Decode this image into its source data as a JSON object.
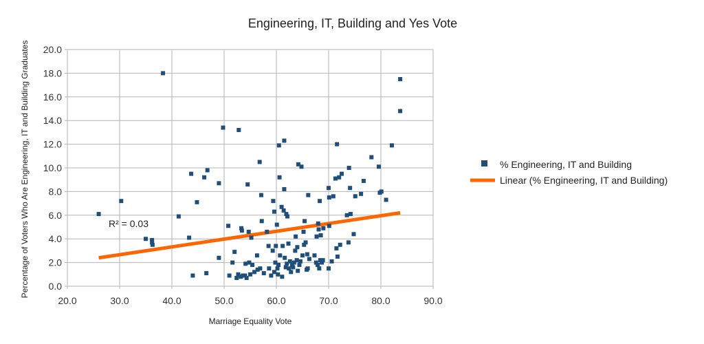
{
  "chart_data": {
    "type": "scatter",
    "title": "Engineering, IT, Building and Yes Vote",
    "xlabel": "Marriage Equality Vote",
    "ylabel": "Percentage of Voters Who Are Engineering, IT and Building Graduates",
    "xlim": [
      20,
      90
    ],
    "ylim": [
      0,
      20
    ],
    "x_ticks": [
      "20.0",
      "30.0",
      "40.0",
      "50.0",
      "60.0",
      "70.0",
      "80.0",
      "90.0"
    ],
    "y_ticks": [
      "0.0",
      "2.0",
      "4.0",
      "6.0",
      "8.0",
      "10.0",
      "12.0",
      "14.0",
      "16.0",
      "18.0",
      "20.0"
    ],
    "grid": true,
    "legend_position": "right",
    "series": [
      {
        "name": "% Engineering, IT and Building",
        "color": "#1f4e79",
        "marker": "square",
        "points": [
          [
            26.0,
            6.1
          ],
          [
            30.3,
            7.2
          ],
          [
            35.0,
            4.0
          ],
          [
            36.2,
            3.7
          ],
          [
            36.3,
            3.5
          ],
          [
            36.2,
            3.9
          ],
          [
            38.3,
            18.0
          ],
          [
            41.3,
            5.9
          ],
          [
            43.3,
            4.1
          ],
          [
            43.7,
            9.5
          ],
          [
            44.0,
            0.9
          ],
          [
            44.8,
            7.1
          ],
          [
            46.2,
            9.2
          ],
          [
            46.6,
            1.1
          ],
          [
            46.8,
            9.8
          ],
          [
            49.0,
            8.7
          ],
          [
            49.0,
            2.4
          ],
          [
            49.8,
            13.4
          ],
          [
            50.8,
            5.1
          ],
          [
            51.0,
            0.9
          ],
          [
            51.6,
            2.0
          ],
          [
            52.0,
            2.9
          ],
          [
            52.4,
            0.7
          ],
          [
            52.7,
            1.0
          ],
          [
            52.8,
            13.2
          ],
          [
            53.2,
            0.8
          ],
          [
            53.3,
            4.9
          ],
          [
            53.4,
            4.7
          ],
          [
            53.6,
            0.9
          ],
          [
            54.0,
            0.9
          ],
          [
            54.1,
            1.9
          ],
          [
            54.3,
            0.7
          ],
          [
            54.5,
            8.6
          ],
          [
            54.7,
            4.6
          ],
          [
            54.8,
            2.0
          ],
          [
            55.0,
            1.0
          ],
          [
            55.2,
            4.1
          ],
          [
            55.4,
            1.8
          ],
          [
            55.8,
            1.2
          ],
          [
            56.3,
            2.6
          ],
          [
            56.4,
            1.4
          ],
          [
            56.8,
            10.5
          ],
          [
            56.9,
            1.5
          ],
          [
            57.1,
            7.7
          ],
          [
            57.2,
            5.5
          ],
          [
            57.6,
            1.1
          ],
          [
            58.2,
            4.6
          ],
          [
            58.5,
            3.4
          ],
          [
            58.6,
            1.5
          ],
          [
            59.0,
            0.9
          ],
          [
            59.3,
            3.0
          ],
          [
            59.4,
            7.2
          ],
          [
            59.6,
            6.3
          ],
          [
            59.6,
            1.2
          ],
          [
            59.8,
            2.0
          ],
          [
            59.9,
            3.4
          ],
          [
            60.1,
            5.2
          ],
          [
            60.2,
            1.5
          ],
          [
            60.3,
            1.0
          ],
          [
            60.4,
            1.8
          ],
          [
            60.5,
            11.9
          ],
          [
            60.6,
            9.2
          ],
          [
            60.7,
            2.6
          ],
          [
            61.0,
            6.7
          ],
          [
            61.1,
            0.8
          ],
          [
            61.2,
            3.4
          ],
          [
            61.4,
            6.4
          ],
          [
            61.5,
            12.3
          ],
          [
            61.5,
            8.2
          ],
          [
            61.6,
            2.4
          ],
          [
            61.8,
            1.6
          ],
          [
            61.9,
            6.1
          ],
          [
            62.0,
            1.9
          ],
          [
            62.1,
            5.9
          ],
          [
            62.3,
            3.6
          ],
          [
            62.4,
            1.5
          ],
          [
            62.6,
            2.1
          ],
          [
            62.8,
            1.2
          ],
          [
            63.0,
            1.8
          ],
          [
            63.2,
            1.6
          ],
          [
            63.4,
            2.0
          ],
          [
            63.6,
            3.0
          ],
          [
            63.7,
            4.2
          ],
          [
            63.9,
            2.2
          ],
          [
            64.0,
            3.3
          ],
          [
            64.1,
            1.3
          ],
          [
            64.2,
            10.3
          ],
          [
            64.4,
            1.8
          ],
          [
            64.6,
            2.1
          ],
          [
            64.8,
            10.1
          ],
          [
            65.0,
            2.6
          ],
          [
            65.2,
            4.6
          ],
          [
            65.3,
            3.5
          ],
          [
            65.4,
            5.5
          ],
          [
            65.6,
            3.7
          ],
          [
            65.8,
            1.4
          ],
          [
            65.9,
            2.7
          ],
          [
            66.0,
            1.5
          ],
          [
            66.1,
            7.7
          ],
          [
            66.3,
            2.3
          ],
          [
            67.3,
            2.6
          ],
          [
            67.6,
            2.0
          ],
          [
            67.7,
            4.2
          ],
          [
            67.9,
            1.8
          ],
          [
            68.0,
            5.3
          ],
          [
            68.1,
            4.8
          ],
          [
            68.2,
            1.5
          ],
          [
            68.3,
            7.2
          ],
          [
            68.4,
            2.2
          ],
          [
            68.5,
            4.3
          ],
          [
            68.7,
            2.0
          ],
          [
            68.9,
            2.2
          ],
          [
            69.0,
            4.9
          ],
          [
            70.0,
            8.3
          ],
          [
            70.0,
            1.5
          ],
          [
            70.1,
            5.1
          ],
          [
            70.1,
            7.5
          ],
          [
            70.6,
            2.1
          ],
          [
            70.9,
            7.6
          ],
          [
            71.3,
            9.1
          ],
          [
            71.5,
            3.2
          ],
          [
            71.6,
            12.0
          ],
          [
            71.7,
            2.5
          ],
          [
            72.0,
            9.2
          ],
          [
            72.2,
            3.5
          ],
          [
            72.5,
            9.5
          ],
          [
            73.5,
            6.0
          ],
          [
            73.8,
            3.7
          ],
          [
            73.9,
            10.0
          ],
          [
            74.1,
            8.3
          ],
          [
            74.2,
            6.1
          ],
          [
            74.8,
            4.4
          ],
          [
            75.1,
            7.6
          ],
          [
            76.2,
            7.8
          ],
          [
            76.7,
            8.9
          ],
          [
            78.2,
            10.9
          ],
          [
            79.6,
            10.1
          ],
          [
            79.8,
            7.9
          ],
          [
            80.1,
            8.0
          ],
          [
            81.0,
            7.3
          ],
          [
            82.1,
            11.9
          ],
          [
            83.7,
            17.5
          ],
          [
            83.7,
            14.8
          ]
        ]
      }
    ],
    "trendline": {
      "name": "Linear (% Engineering, IT and Building)",
      "color": "#ff6600",
      "x": [
        26.0,
        83.7
      ],
      "y": [
        2.4,
        6.2
      ],
      "annotation": "R² = 0.03"
    }
  }
}
